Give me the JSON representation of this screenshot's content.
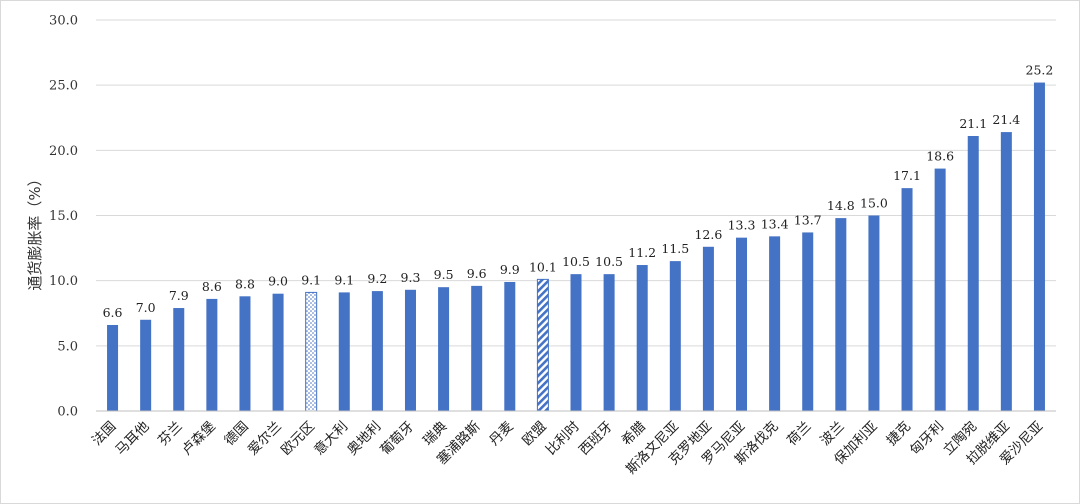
{
  "chart_data": {
    "type": "bar",
    "ylabel": "通货膨胀率（%）",
    "ylim": [
      0,
      30
    ],
    "yticks": [
      "0.0",
      "5.0",
      "10.0",
      "15.0",
      "20.0",
      "25.0",
      "30.0"
    ],
    "grid": true,
    "categories": [
      "法国",
      "马耳他",
      "芬兰",
      "卢森堡",
      "德国",
      "爱尔兰",
      "欧元区",
      "意大利",
      "奥地利",
      "葡萄牙",
      "瑞典",
      "塞浦路斯",
      "丹麦",
      "欧盟",
      "比利时",
      "西班牙",
      "希腊",
      "斯洛文尼亚",
      "克罗地亚",
      "罗马尼亚",
      "斯洛伐克",
      "荷兰",
      "波兰",
      "保加利亚",
      "捷克",
      "匈牙利",
      "立陶宛",
      "拉脱维亚",
      "爱沙尼亚"
    ],
    "values": [
      6.6,
      7.0,
      7.9,
      8.6,
      8.8,
      9.0,
      9.1,
      9.1,
      9.2,
      9.3,
      9.5,
      9.6,
      9.9,
      10.1,
      10.5,
      10.5,
      11.2,
      11.5,
      12.6,
      13.3,
      13.4,
      13.7,
      14.8,
      15.0,
      17.1,
      18.6,
      21.1,
      21.4,
      25.2
    ],
    "value_labels": [
      "6.6",
      "7.0",
      "7.9",
      "8.6",
      "8.8",
      "9.0",
      "9.1",
      "9.1",
      "9.2",
      "9.3",
      "9.5",
      "9.6",
      "9.9",
      "10.1",
      "10.5",
      "10.5",
      "11.2",
      "11.5",
      "12.6",
      "13.3",
      "13.4",
      "13.7",
      "14.8",
      "15.0",
      "17.1",
      "18.6",
      "21.1",
      "21.4",
      "25.2"
    ],
    "bar_styles": [
      "solid",
      "solid",
      "solid",
      "solid",
      "solid",
      "solid",
      "dotted",
      "solid",
      "solid",
      "solid",
      "solid",
      "solid",
      "solid",
      "hatched",
      "solid",
      "solid",
      "solid",
      "solid",
      "solid",
      "solid",
      "solid",
      "solid",
      "solid",
      "solid",
      "solid",
      "solid",
      "solid",
      "solid",
      "solid"
    ],
    "colors": {
      "bar": "#4472C4",
      "grid": "#d9d9d9",
      "axis": "#bfbfbf"
    }
  }
}
